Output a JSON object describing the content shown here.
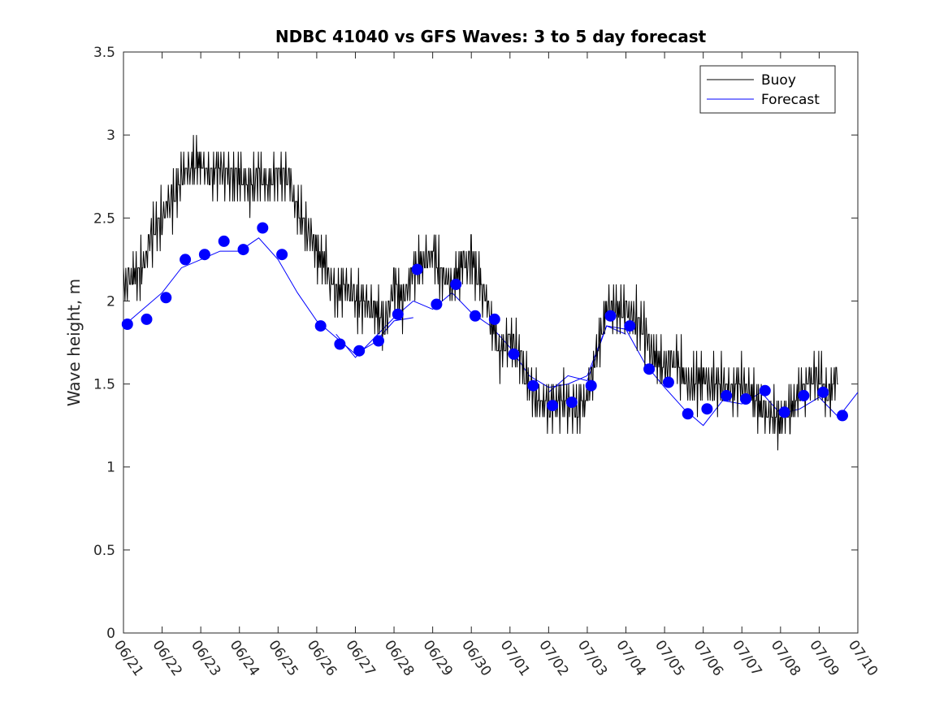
{
  "chart_data": {
    "type": "line",
    "title": "NDBC 41040 vs GFS Waves: 3 to 5 day forecast",
    "xlabel": "",
    "ylabel": "Wave height, m",
    "ylim": [
      0,
      3.5
    ],
    "yticks": [
      "0",
      "0.5",
      "1",
      "1.5",
      "2",
      "2.5",
      "3",
      "3.5"
    ],
    "x_ticks": [
      "06/21",
      "06/22",
      "06/23",
      "06/24",
      "06/25",
      "06/26",
      "06/27",
      "06/28",
      "06/29",
      "06/30",
      "07/01",
      "07/02",
      "07/03",
      "07/04",
      "07/05",
      "07/06",
      "07/07",
      "07/08",
      "07/09",
      "07/10"
    ],
    "x_unit": "days after 06/21",
    "xlim": [
      0,
      19
    ],
    "grid": false,
    "legend_position": "top-right",
    "colors": {
      "buoy": "#000000",
      "forecast": "#0000ff"
    },
    "series": [
      {
        "name": "Buoy",
        "kind": "jagged-line",
        "x": [
          0,
          0.25,
          0.5,
          0.75,
          1.0,
          1.25,
          1.5,
          1.75,
          2.0,
          2.25,
          2.5,
          2.75,
          3.0,
          3.25,
          3.5,
          3.75,
          4.0,
          4.25,
          4.5,
          4.75,
          5.0,
          5.25,
          5.5,
          5.75,
          6.0,
          6.25,
          6.5,
          6.75,
          7.0,
          7.25,
          7.5,
          7.75,
          8.0,
          8.25,
          8.5,
          8.75,
          9.0,
          9.25,
          9.5,
          9.75,
          10.0,
          10.25,
          10.5,
          10.75,
          11.0,
          11.25,
          11.5,
          11.75,
          12.0,
          12.25,
          12.5,
          12.75,
          13.0,
          13.25,
          13.5,
          13.75,
          14.0,
          14.25,
          14.5,
          14.75,
          15.0,
          15.25,
          15.5,
          15.75,
          16.0,
          16.25,
          16.5,
          16.75,
          17.0,
          17.25,
          17.5,
          17.75,
          18.0,
          18.25,
          18.5
        ],
        "y": [
          2.1,
          2.15,
          2.2,
          2.4,
          2.5,
          2.6,
          2.75,
          2.8,
          2.85,
          2.75,
          2.8,
          2.75,
          2.75,
          2.7,
          2.75,
          2.7,
          2.75,
          2.75,
          2.55,
          2.45,
          2.3,
          2.2,
          2.05,
          2.1,
          2.0,
          2.0,
          1.95,
          1.85,
          2.1,
          2.0,
          2.2,
          2.25,
          2.3,
          2.15,
          2.1,
          2.2,
          2.25,
          2.1,
          1.9,
          1.7,
          1.8,
          1.65,
          1.5,
          1.4,
          1.35,
          1.4,
          1.4,
          1.35,
          1.4,
          1.7,
          1.95,
          1.95,
          1.95,
          1.9,
          1.8,
          1.65,
          1.6,
          1.65,
          1.55,
          1.5,
          1.55,
          1.5,
          1.5,
          1.45,
          1.5,
          1.45,
          1.35,
          1.3,
          1.3,
          1.35,
          1.45,
          1.5,
          1.55,
          1.45,
          1.55
        ]
      },
      {
        "name": "Forecast",
        "kind": "markers",
        "x": [
          0.1,
          0.6,
          1.1,
          1.6,
          2.1,
          2.6,
          3.1,
          3.6,
          4.1,
          5.1,
          5.6,
          6.1,
          6.6,
          7.1,
          7.6,
          8.1,
          8.6,
          9.1,
          9.6,
          10.1,
          10.6,
          11.1,
          11.6,
          12.1,
          12.6,
          13.1,
          13.6,
          14.1,
          14.6,
          15.1,
          15.6,
          16.1,
          16.6,
          17.1,
          17.6,
          18.1,
          18.6
        ],
        "y": [
          1.86,
          1.89,
          2.02,
          2.25,
          2.28,
          2.36,
          2.31,
          2.44,
          2.28,
          1.85,
          1.74,
          1.7,
          1.76,
          1.92,
          2.19,
          1.98,
          2.1,
          1.91,
          1.89,
          1.68,
          1.49,
          1.37,
          1.39,
          1.49,
          1.91,
          1.85,
          1.59,
          1.51,
          1.32,
          1.35,
          1.43,
          1.41,
          1.46,
          1.33,
          1.43,
          1.45,
          1.31
        ]
      }
    ],
    "forecast_traces": [
      {
        "x": [
          0.0,
          0.5,
          1.0,
          1.5,
          2.0,
          2.5,
          3.0,
          3.5,
          4.0,
          4.5,
          5.0,
          5.5,
          6.0,
          6.5,
          7.0,
          7.5
        ],
        "y": [
          1.85,
          1.95,
          2.05,
          2.2,
          2.25,
          2.3,
          2.3,
          2.38,
          2.25,
          2.05,
          1.88,
          1.78,
          1.68,
          1.75,
          1.88,
          1.9
        ]
      },
      {
        "x": [
          5.5,
          6.0,
          6.5,
          7.0,
          7.5,
          8.0,
          8.5,
          9.0,
          9.5,
          10.0,
          10.5,
          11.0,
          11.5,
          12.0,
          12.5,
          13.0
        ],
        "y": [
          1.8,
          1.66,
          1.78,
          1.9,
          2.0,
          1.95,
          2.05,
          1.93,
          1.85,
          1.72,
          1.55,
          1.48,
          1.5,
          1.55,
          1.85,
          1.8
        ]
      },
      {
        "x": [
          11.0,
          11.5,
          12.0,
          12.5,
          13.0,
          13.5,
          14.0,
          14.5,
          15.0,
          15.5,
          16.0,
          16.5,
          17.0,
          17.5,
          18.0,
          18.5,
          19.0
        ],
        "y": [
          1.45,
          1.55,
          1.52,
          1.85,
          1.83,
          1.62,
          1.48,
          1.35,
          1.25,
          1.4,
          1.38,
          1.45,
          1.32,
          1.35,
          1.42,
          1.3,
          1.45
        ]
      }
    ]
  }
}
